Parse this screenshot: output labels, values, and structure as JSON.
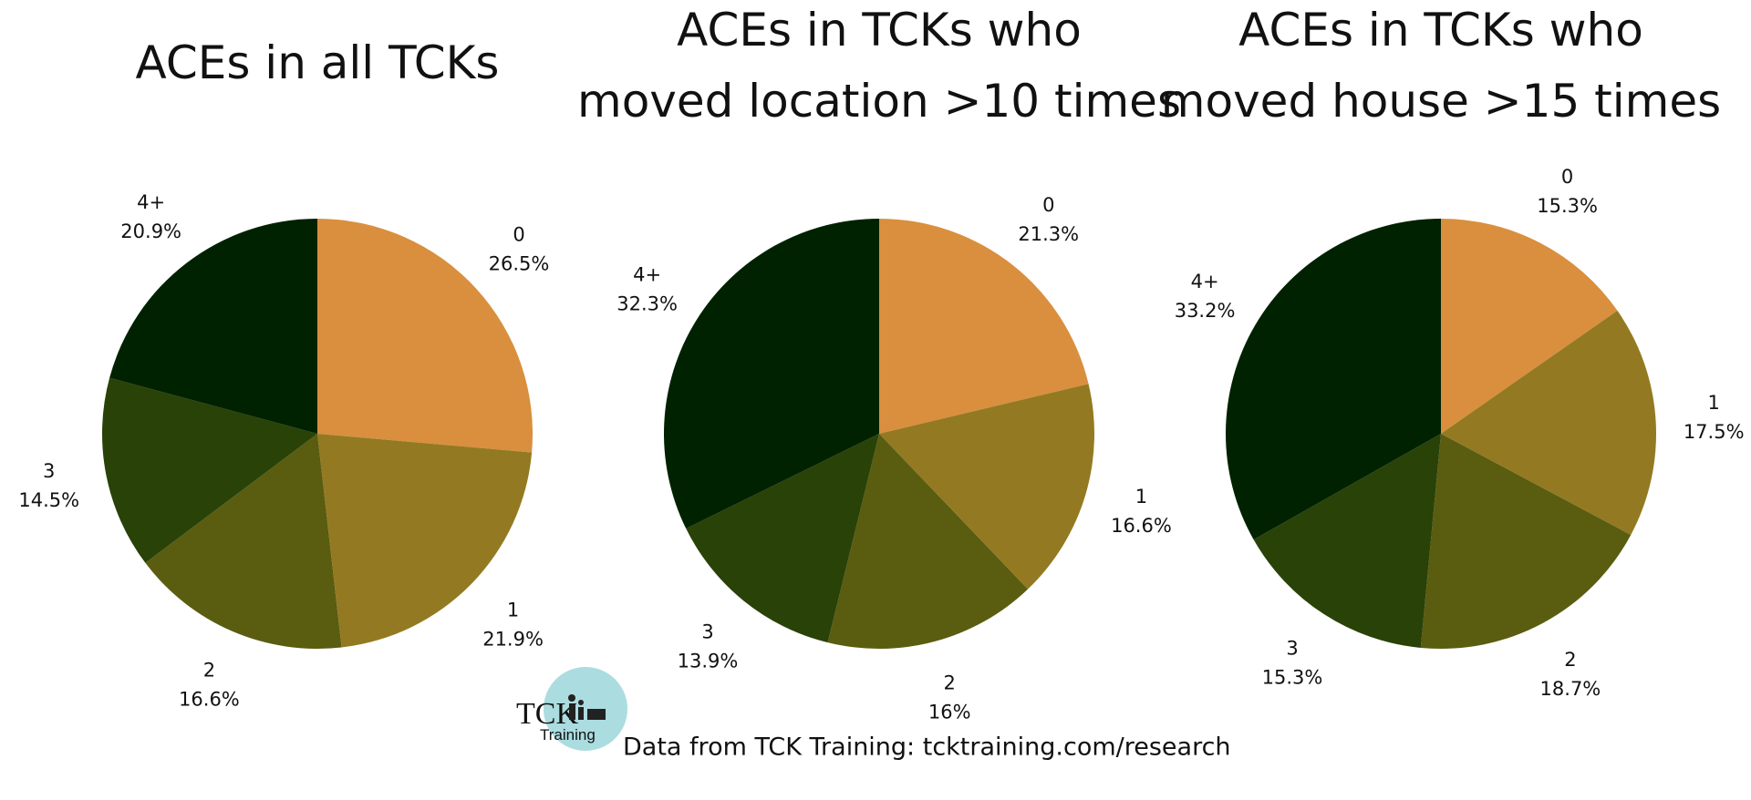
{
  "chart_data": [
    {
      "type": "pie",
      "title": [
        "ACEs in all TCKs"
      ],
      "categories": [
        "0",
        "1",
        "2",
        "3",
        "4+"
      ],
      "values": [
        26.5,
        21.9,
        16.6,
        14.5,
        20.9
      ],
      "value_labels": [
        "26.5%",
        "21.9%",
        "16.6%",
        "14.5%",
        "20.9%"
      ],
      "colors": [
        "#d98f3e",
        "#937a22",
        "#5a5c10",
        "#284208",
        "#002200"
      ]
    },
    {
      "type": "pie",
      "title": [
        "ACEs in TCKs who",
        "moved location >10 times"
      ],
      "categories": [
        "0",
        "1",
        "2",
        "3",
        "4+"
      ],
      "values": [
        21.3,
        16.6,
        16,
        13.9,
        32.3
      ],
      "value_labels": [
        "21.3%",
        "16.6%",
        "16%",
        "13.9%",
        "32.3%"
      ],
      "colors": [
        "#d98f3e",
        "#937a22",
        "#5a5c10",
        "#284208",
        "#002200"
      ]
    },
    {
      "type": "pie",
      "title": [
        "ACEs in TCKs who",
        "moved house >15 times"
      ],
      "categories": [
        "0",
        "1",
        "2",
        "3",
        "4+"
      ],
      "values": [
        15.3,
        17.5,
        18.7,
        15.3,
        33.2
      ],
      "value_labels": [
        "15.3%",
        "17.5%",
        "18.7%",
        "15.3%",
        "33.2%"
      ],
      "colors": [
        "#d98f3e",
        "#937a22",
        "#5a5c10",
        "#284208",
        "#002200"
      ]
    }
  ],
  "footer": {
    "source": "Data from TCK Training: tcktraining.com/research",
    "logo_top": "TCK",
    "logo_bottom": "Training"
  }
}
